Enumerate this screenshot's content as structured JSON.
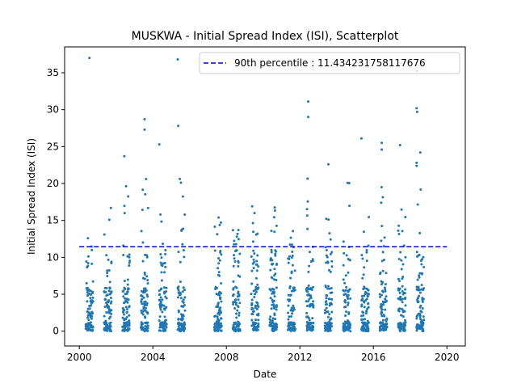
{
  "chart_data": {
    "type": "scatter",
    "title": "MUSKWA - Initial Spread Index (ISI), Scatterplot",
    "xlabel": "Date",
    "ylabel": "Initial Spread Index (ISI)",
    "xlim": [
      1999.2,
      2021.0
    ],
    "ylim": [
      -2.0,
      38.5
    ],
    "x_ticks": [
      2000,
      2004,
      2008,
      2012,
      2016,
      2020
    ],
    "x_tick_labels": [
      "2000",
      "2004",
      "2008",
      "2012",
      "2016",
      "2020"
    ],
    "y_ticks": [
      0,
      5,
      10,
      15,
      20,
      25,
      30,
      35
    ],
    "y_tick_labels": [
      "0",
      "5",
      "10",
      "15",
      "20",
      "25",
      "30",
      "35"
    ],
    "grid": false,
    "legend_position": "top-right",
    "point_color": "#1f77b4",
    "reference_line": {
      "value": 11.434231758117676,
      "label": "90th percentile : 11.434231758117676",
      "color": "#0000cc",
      "style": "dashed"
    },
    "seasons": [
      {
        "start": 2000.35,
        "end": 2000.75,
        "max": 14
      },
      {
        "start": 2001.35,
        "end": 2001.75,
        "max": 17
      },
      {
        "start": 2002.35,
        "end": 2002.75,
        "max": 20
      },
      {
        "start": 2003.35,
        "end": 2003.75,
        "max": 22
      },
      {
        "start": 2004.35,
        "end": 2004.75,
        "max": 17
      },
      {
        "start": 2005.35,
        "end": 2005.75,
        "max": 23
      },
      {
        "start": 2007.35,
        "end": 2007.75,
        "max": 16
      },
      {
        "start": 2008.35,
        "end": 2008.75,
        "max": 15
      },
      {
        "start": 2009.35,
        "end": 2009.75,
        "max": 17
      },
      {
        "start": 2010.35,
        "end": 2010.75,
        "max": 17
      },
      {
        "start": 2011.35,
        "end": 2011.75,
        "max": 14
      },
      {
        "start": 2012.35,
        "end": 2012.75,
        "max": 22
      },
      {
        "start": 2013.35,
        "end": 2013.75,
        "max": 16
      },
      {
        "start": 2014.35,
        "end": 2014.75,
        "max": 21
      },
      {
        "start": 2015.35,
        "end": 2015.75,
        "max": 17
      },
      {
        "start": 2016.35,
        "end": 2016.75,
        "max": 21
      },
      {
        "start": 2017.35,
        "end": 2017.75,
        "max": 18
      },
      {
        "start": 2018.35,
        "end": 2018.75,
        "max": 20
      }
    ],
    "outliers": [
      {
        "x": 2000.55,
        "y": 37.0
      },
      {
        "x": 2002.45,
        "y": 23.7
      },
      {
        "x": 2003.55,
        "y": 28.7
      },
      {
        "x": 2003.55,
        "y": 27.3
      },
      {
        "x": 2004.35,
        "y": 25.3
      },
      {
        "x": 2005.35,
        "y": 36.8
      },
      {
        "x": 2005.38,
        "y": 27.8
      },
      {
        "x": 2012.45,
        "y": 31.1
      },
      {
        "x": 2012.45,
        "y": 29.0
      },
      {
        "x": 2013.55,
        "y": 22.6
      },
      {
        "x": 2015.35,
        "y": 26.1
      },
      {
        "x": 2016.45,
        "y": 25.5
      },
      {
        "x": 2016.45,
        "y": 24.6
      },
      {
        "x": 2017.45,
        "y": 25.2
      },
      {
        "x": 2018.35,
        "y": 35.2
      },
      {
        "x": 2018.35,
        "y": 30.2
      },
      {
        "x": 2018.38,
        "y": 29.7
      },
      {
        "x": 2018.55,
        "y": 24.2
      },
      {
        "x": 2018.35,
        "y": 22.8
      },
      {
        "x": 2018.35,
        "y": 22.4
      }
    ]
  }
}
